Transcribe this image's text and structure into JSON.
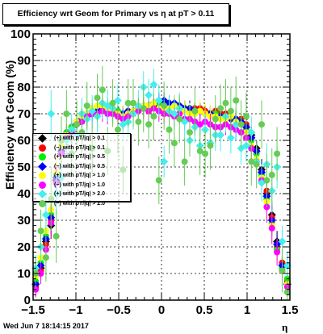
{
  "chart_data": {
    "type": "scatter",
    "title": "Efficiency wrt Geom for Primary vs   η at pT > 0.11",
    "xlabel": "η",
    "ylabel": "Efficiency wrt Geom (%)",
    "xlim": [
      -1.5,
      1.5
    ],
    "ylim": [
      0,
      100
    ],
    "xticks": [
      "−1.5",
      "−1",
      "−0.5",
      "0",
      "0.5",
      "1",
      "1.5"
    ],
    "yticks": [
      "0",
      "10",
      "20",
      "30",
      "40",
      "50",
      "60",
      "70",
      "80",
      "90",
      "100"
    ],
    "grid": true,
    "legend_position": "left",
    "series": [
      {
        "name": "(+) with pT/|q| > 0.1",
        "color": "#000000",
        "shape": "diamond",
        "x": [
          -1.47,
          -1.41,
          -1.35,
          -1.29,
          -1.23,
          -1.17,
          -1.11,
          -1.05,
          -0.99,
          -0.93,
          -0.87,
          -0.81,
          -0.75,
          -0.69,
          -0.63,
          -0.57,
          -0.51,
          -0.45,
          -0.39,
          -0.33,
          -0.27,
          -0.21,
          -0.15,
          -0.09,
          -0.03,
          0.03,
          0.09,
          0.15,
          0.21,
          0.27,
          0.33,
          0.39,
          0.45,
          0.51,
          0.57,
          0.63,
          0.69,
          0.75,
          0.81,
          0.87,
          0.93,
          0.99,
          1.05,
          1.11,
          1.17,
          1.23,
          1.29,
          1.35,
          1.41,
          1.47
        ],
        "y": [
          6,
          12,
          22,
          28,
          45,
          55,
          61,
          64,
          66,
          68,
          69,
          70,
          71,
          72,
          72,
          71,
          70,
          70,
          70,
          71,
          72,
          72,
          73,
          73,
          73,
          73,
          73,
          73,
          73,
          72,
          72,
          71,
          71,
          71,
          70,
          70,
          70,
          69,
          69,
          68,
          67,
          65,
          62,
          57,
          49,
          40,
          32,
          22,
          13,
          6
        ],
        "err": [
          2,
          3,
          4,
          5,
          5,
          4,
          3,
          3,
          2,
          2,
          2,
          2,
          2,
          2,
          2,
          2,
          2,
          2,
          2,
          2,
          2,
          2,
          2,
          2,
          2,
          2,
          2,
          2,
          2,
          2,
          2,
          2,
          2,
          2,
          2,
          2,
          2,
          2,
          2,
          2,
          2,
          2,
          3,
          3,
          4,
          5,
          5,
          4,
          3,
          2
        ]
      },
      {
        "name": "(−) with pT/|q| > 0.1",
        "color": "#ff0000",
        "shape": "circle",
        "x": [
          -1.47,
          -1.41,
          -1.35,
          -1.29,
          -1.23,
          -1.17,
          -1.11,
          -1.05,
          -0.99,
          -0.93,
          -0.87,
          -0.81,
          -0.75,
          -0.69,
          -0.63,
          -0.57,
          -0.51,
          -0.45,
          -0.39,
          -0.33,
          -0.27,
          -0.21,
          -0.15,
          -0.09,
          -0.03,
          0.03,
          0.09,
          0.15,
          0.21,
          0.27,
          0.33,
          0.39,
          0.45,
          0.51,
          0.57,
          0.63,
          0.69,
          0.75,
          0.81,
          0.87,
          0.93,
          0.99,
          1.05,
          1.11,
          1.17,
          1.23,
          1.29,
          1.35,
          1.41,
          1.47
        ],
        "y": [
          5,
          11,
          21,
          30,
          46,
          56,
          62,
          65,
          67,
          69,
          70,
          71,
          72,
          72,
          71,
          71,
          71,
          70,
          71,
          71,
          72,
          73,
          73,
          74,
          74,
          74,
          73,
          73,
          72,
          72,
          71,
          72,
          72,
          71,
          70,
          71,
          70,
          70,
          69,
          68,
          68,
          66,
          61,
          56,
          48,
          41,
          31,
          20,
          14,
          7
        ],
        "err": [
          2,
          3,
          4,
          5,
          5,
          4,
          3,
          3,
          2,
          2,
          2,
          2,
          2,
          2,
          2,
          2,
          2,
          2,
          2,
          2,
          2,
          2,
          2,
          2,
          2,
          2,
          2,
          2,
          2,
          2,
          2,
          2,
          2,
          2,
          2,
          2,
          2,
          2,
          2,
          2,
          2,
          2,
          3,
          3,
          4,
          5,
          5,
          4,
          3,
          2
        ]
      },
      {
        "name": "(+) with pT/|q| > 0.5",
        "color": "#00ee00",
        "shape": "circle",
        "x": [
          -1.47,
          -1.41,
          -1.35,
          -1.29,
          -1.23,
          -1.17,
          -1.11,
          -1.05,
          -0.99,
          -0.93,
          -0.87,
          -0.81,
          -0.75,
          -0.69,
          -0.63,
          -0.57,
          -0.51,
          -0.45,
          -0.39,
          -0.33,
          -0.27,
          -0.21,
          -0.15,
          -0.09,
          -0.03,
          0.03,
          0.09,
          0.15,
          0.21,
          0.27,
          0.33,
          0.39,
          0.45,
          0.51,
          0.57,
          0.63,
          0.69,
          0.75,
          0.81,
          0.87,
          0.93,
          0.99,
          1.05,
          1.11,
          1.17,
          1.23,
          1.29,
          1.35,
          1.41,
          1.47
        ],
        "y": [
          7,
          14,
          24,
          32,
          47,
          57,
          63,
          65,
          67,
          69,
          70,
          71,
          72,
          73,
          73,
          72,
          71,
          70,
          70,
          71,
          72,
          72,
          73,
          74,
          74,
          73,
          73,
          73,
          72,
          72,
          72,
          71,
          71,
          70,
          70,
          70,
          69,
          69,
          69,
          68,
          67,
          64,
          60,
          55,
          47,
          38,
          29,
          19,
          12,
          8
        ],
        "err": [
          2,
          3,
          4,
          5,
          5,
          4,
          3,
          3,
          3,
          3,
          3,
          3,
          3,
          3,
          3,
          3,
          3,
          3,
          3,
          3,
          3,
          3,
          3,
          3,
          3,
          3,
          3,
          3,
          3,
          3,
          3,
          3,
          3,
          3,
          3,
          3,
          3,
          3,
          3,
          3,
          3,
          3,
          3,
          4,
          4,
          5,
          5,
          4,
          3,
          2
        ]
      },
      {
        "name": "(−) with pT/|q| > 0.5",
        "color": "#0000ff",
        "shape": "diamond",
        "x": [
          -1.47,
          -1.41,
          -1.35,
          -1.29,
          -1.23,
          -1.17,
          -1.11,
          -1.05,
          -0.99,
          -0.93,
          -0.87,
          -0.81,
          -0.75,
          -0.69,
          -0.63,
          -0.57,
          -0.51,
          -0.45,
          -0.39,
          -0.33,
          -0.27,
          -0.21,
          -0.15,
          -0.09,
          -0.03,
          0.03,
          0.09,
          0.15,
          0.21,
          0.27,
          0.33,
          0.39,
          0.45,
          0.51,
          0.57,
          0.63,
          0.69,
          0.75,
          0.81,
          0.87,
          0.93,
          0.99,
          1.05,
          1.11,
          1.17,
          1.23,
          1.29,
          1.35,
          1.41,
          1.47
        ],
        "y": [
          6,
          13,
          23,
          31,
          46,
          56,
          62,
          64,
          66,
          68,
          69,
          70,
          71,
          72,
          72,
          71,
          70,
          70,
          71,
          71,
          72,
          73,
          73,
          74,
          75,
          75,
          74,
          74,
          73,
          72,
          72,
          71,
          71,
          70,
          70,
          69,
          69,
          69,
          68,
          68,
          67,
          65,
          61,
          56,
          48,
          39,
          30,
          21,
          13,
          6
        ],
        "err": [
          2,
          3,
          4,
          5,
          5,
          4,
          3,
          3,
          3,
          3,
          3,
          3,
          3,
          3,
          3,
          3,
          3,
          3,
          3,
          3,
          3,
          3,
          3,
          3,
          3,
          3,
          3,
          3,
          3,
          3,
          3,
          3,
          3,
          3,
          3,
          3,
          3,
          3,
          3,
          3,
          3,
          3,
          3,
          4,
          4,
          5,
          5,
          4,
          3,
          2
        ]
      },
      {
        "name": "(+) with pT/|q| > 1.0",
        "color": "#ffff00",
        "shape": "circle",
        "x": [
          -1.47,
          -1.41,
          -1.35,
          -1.29,
          -1.23,
          -1.17,
          -1.11,
          -1.05,
          -0.99,
          -0.93,
          -0.87,
          -0.81,
          -0.75,
          -0.69,
          -0.63,
          -0.57,
          -0.51,
          -0.45,
          -0.39,
          -0.33,
          -0.27,
          -0.21,
          -0.15,
          -0.09,
          -0.03,
          0.03,
          0.09,
          0.15,
          0.21,
          0.27,
          0.33,
          0.39,
          0.45,
          0.51,
          0.57,
          0.63,
          0.69,
          0.75,
          0.81,
          0.87,
          0.93,
          0.99,
          1.05,
          1.11,
          1.17,
          1.23,
          1.29,
          1.35,
          1.41,
          1.47
        ],
        "y": [
          9,
          16,
          26,
          34,
          48,
          58,
          62,
          64,
          67,
          69,
          70,
          72,
          73,
          73,
          72,
          71,
          70,
          69,
          70,
          71,
          72,
          73,
          73,
          74,
          72,
          71,
          72,
          73,
          72,
          71,
          70,
          70,
          71,
          70,
          69,
          69,
          68,
          68,
          69,
          67,
          66,
          63,
          58,
          53,
          46,
          37,
          28,
          18,
          11,
          6
        ],
        "err": [
          3,
          4,
          5,
          6,
          6,
          5,
          4,
          4,
          4,
          4,
          4,
          4,
          4,
          4,
          4,
          4,
          4,
          4,
          4,
          4,
          4,
          4,
          4,
          4,
          4,
          4,
          4,
          4,
          4,
          4,
          4,
          4,
          4,
          4,
          4,
          4,
          4,
          4,
          4,
          4,
          4,
          4,
          4,
          5,
          5,
          6,
          6,
          5,
          4,
          3
        ]
      },
      {
        "name": "(−) with pT/|q| > 1.0",
        "color": "#ff00ff",
        "shape": "circle",
        "x": [
          -1.47,
          -1.41,
          -1.35,
          -1.29,
          -1.23,
          -1.17,
          -1.11,
          -1.05,
          -0.99,
          -0.93,
          -0.87,
          -0.81,
          -0.75,
          -0.69,
          -0.63,
          -0.57,
          -0.51,
          -0.45,
          -0.39,
          -0.33,
          -0.27,
          -0.21,
          -0.15,
          -0.09,
          -0.03,
          0.03,
          0.09,
          0.15,
          0.21,
          0.27,
          0.33,
          0.39,
          0.45,
          0.51,
          0.57,
          0.63,
          0.69,
          0.75,
          0.81,
          0.87,
          0.93,
          0.99,
          1.05,
          1.11,
          1.17,
          1.23,
          1.29,
          1.35,
          1.41,
          1.47
        ],
        "y": [
          4,
          10,
          19,
          29,
          44,
          55,
          61,
          63,
          66,
          67,
          69,
          70,
          70,
          71,
          70,
          70,
          69,
          68,
          69,
          70,
          71,
          72,
          71,
          72,
          71,
          70,
          70,
          69,
          70,
          68,
          68,
          67,
          66,
          67,
          66,
          65,
          65,
          66,
          65,
          64,
          63,
          61,
          57,
          52,
          45,
          35,
          27,
          18,
          11,
          5
        ],
        "err": [
          3,
          4,
          5,
          6,
          6,
          5,
          4,
          4,
          4,
          4,
          4,
          4,
          4,
          4,
          4,
          4,
          4,
          4,
          4,
          4,
          4,
          4,
          4,
          4,
          4,
          4,
          4,
          4,
          4,
          4,
          4,
          4,
          4,
          4,
          4,
          4,
          4,
          4,
          4,
          4,
          4,
          4,
          4,
          5,
          5,
          6,
          6,
          5,
          4,
          3
        ]
      },
      {
        "name": "(+) with pT/|q| > 2.0",
        "color": "#44eeee",
        "shape": "diamond",
        "x": [
          -1.47,
          -1.41,
          -1.35,
          -1.29,
          -1.23,
          -1.17,
          -1.11,
          -1.05,
          -0.99,
          -0.93,
          -0.87,
          -0.81,
          -0.75,
          -0.69,
          -0.63,
          -0.57,
          -0.51,
          -0.45,
          -0.39,
          -0.33,
          -0.27,
          -0.21,
          -0.15,
          -0.09,
          -0.03,
          0.03,
          0.09,
          0.15,
          0.21,
          0.27,
          0.33,
          0.39,
          0.45,
          0.51,
          0.57,
          0.63,
          0.69,
          0.75,
          0.81,
          0.87,
          0.93,
          0.99,
          1.05,
          1.11,
          1.17,
          1.23,
          1.29,
          1.35,
          1.41,
          1.47
        ],
        "y": [
          12,
          20,
          32,
          70,
          40,
          46,
          60,
          64,
          62,
          70,
          68,
          71,
          69,
          74,
          73,
          72,
          75,
          66,
          67,
          70,
          73,
          80,
          77,
          81,
          75,
          52,
          71,
          70,
          72,
          67,
          60,
          65,
          58,
          64,
          59,
          62,
          62,
          69,
          61,
          66,
          57,
          58,
          63,
          52,
          44,
          51,
          41,
          50,
          22,
          13
        ],
        "err": [
          5,
          6,
          8,
          9,
          8,
          7,
          6,
          6,
          6,
          6,
          6,
          6,
          6,
          6,
          6,
          6,
          6,
          6,
          6,
          6,
          6,
          6,
          6,
          6,
          6,
          6,
          6,
          6,
          6,
          6,
          6,
          6,
          6,
          6,
          6,
          6,
          6,
          6,
          6,
          6,
          6,
          6,
          6,
          7,
          7,
          8,
          8,
          8,
          6,
          5
        ]
      },
      {
        "name": "(−) with pT/|q| > 2.0",
        "color": "#66cc55",
        "shape": "circle",
        "x": [
          -1.47,
          -1.41,
          -1.35,
          -1.29,
          -1.23,
          -1.17,
          -1.11,
          -1.05,
          -0.99,
          -0.93,
          -0.87,
          -0.81,
          -0.75,
          -0.69,
          -0.63,
          -0.57,
          -0.51,
          -0.45,
          -0.39,
          -0.33,
          -0.27,
          -0.21,
          -0.15,
          -0.09,
          -0.03,
          0.03,
          0.09,
          0.15,
          0.21,
          0.27,
          0.33,
          0.39,
          0.45,
          0.51,
          0.57,
          0.63,
          0.69,
          0.75,
          0.81,
          0.87,
          0.93,
          0.99,
          1.05,
          1.11,
          1.17,
          1.23,
          1.29,
          1.35,
          1.41,
          1.47
        ],
        "y": [
          10,
          26,
          16,
          38,
          24,
          60,
          70,
          55,
          66,
          63,
          73,
          57,
          76,
          79,
          56,
          74,
          64,
          49,
          74,
          74,
          67,
          72,
          66,
          69,
          45,
          73,
          64,
          59,
          68,
          52,
          63,
          71,
          56,
          55,
          58,
          68,
          72,
          74,
          71,
          75,
          66,
          69,
          52,
          51,
          66,
          45,
          47,
          55,
          11,
          3
        ],
        "err": [
          6,
          8,
          9,
          12,
          10,
          9,
          9,
          9,
          9,
          9,
          9,
          9,
          9,
          9,
          9,
          9,
          9,
          9,
          9,
          9,
          9,
          9,
          9,
          9,
          9,
          9,
          9,
          9,
          9,
          9,
          9,
          9,
          9,
          9,
          9,
          9,
          9,
          9,
          9,
          9,
          9,
          9,
          9,
          9,
          9,
          10,
          10,
          10,
          8,
          6
        ]
      }
    ]
  },
  "footer": {
    "timestamp": "Wed Jun  7 18:14:15 2017"
  }
}
